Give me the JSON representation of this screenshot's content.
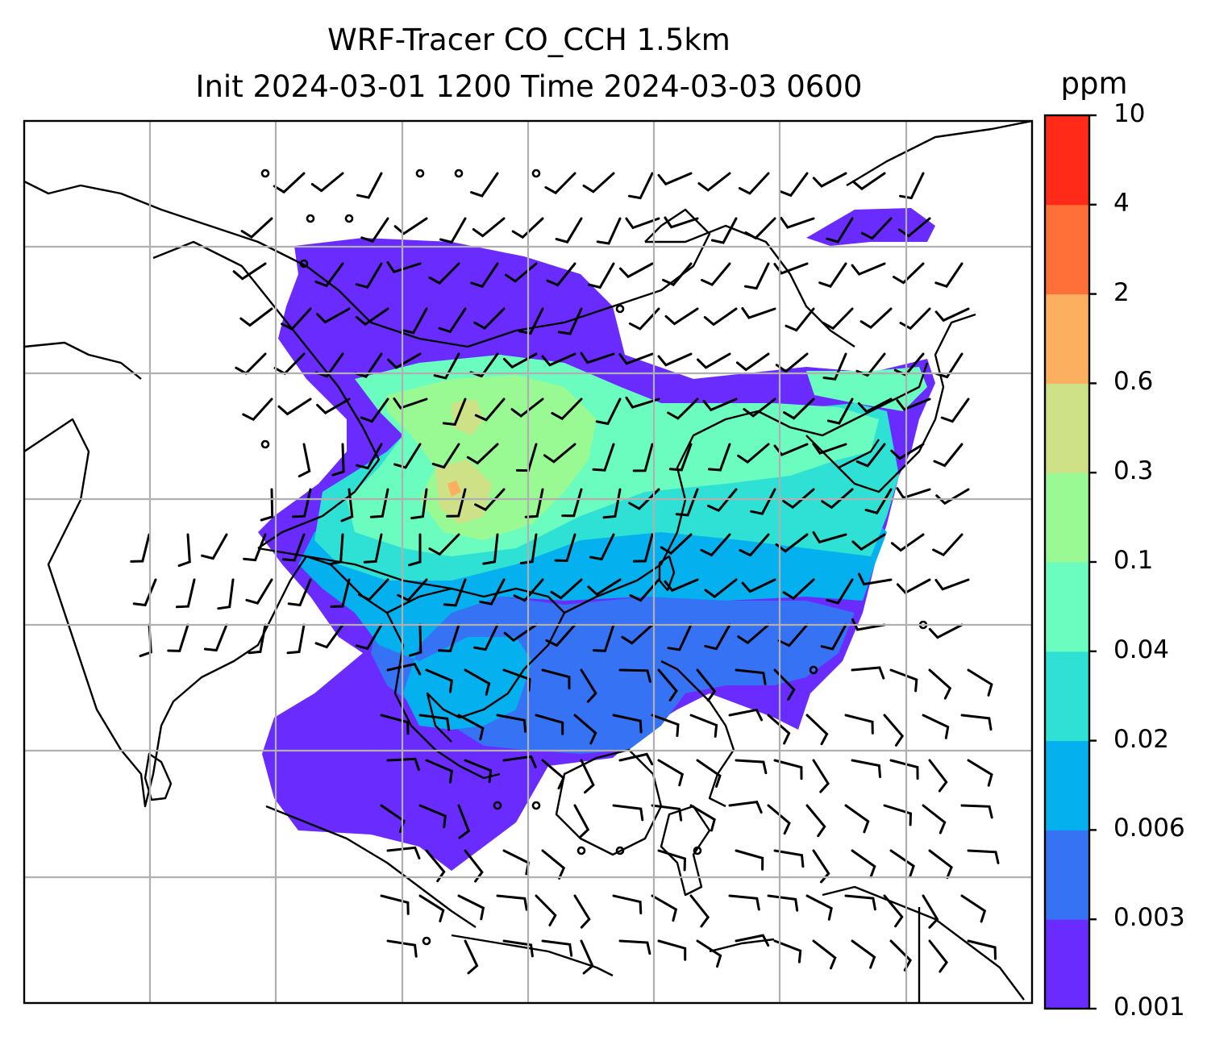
{
  "title": {
    "line1": "WRF-Tracer CO_CCH 1.5km",
    "line2": "Init 2024-03-01 1200 Time 2024-03-03 0600"
  },
  "colorbar": {
    "unit": "ppm",
    "ticks": [
      "0.001",
      "0.003",
      "0.006",
      "0.02",
      "0.04",
      "0.1",
      "0.3",
      "0.6",
      "2",
      "4",
      "10"
    ],
    "colors": [
      "#6a2bff",
      "#3672f4",
      "#04b1ee",
      "#2fe1d4",
      "#6bfdbf",
      "#99f993",
      "#cfe186",
      "#fcaf5f",
      "#ff7038",
      "#ff2b18"
    ]
  },
  "map": {
    "gridlines": true,
    "coastline_color": "#000000",
    "gridline_color": "#b0b0b0",
    "barb_color": "#000000"
  }
}
